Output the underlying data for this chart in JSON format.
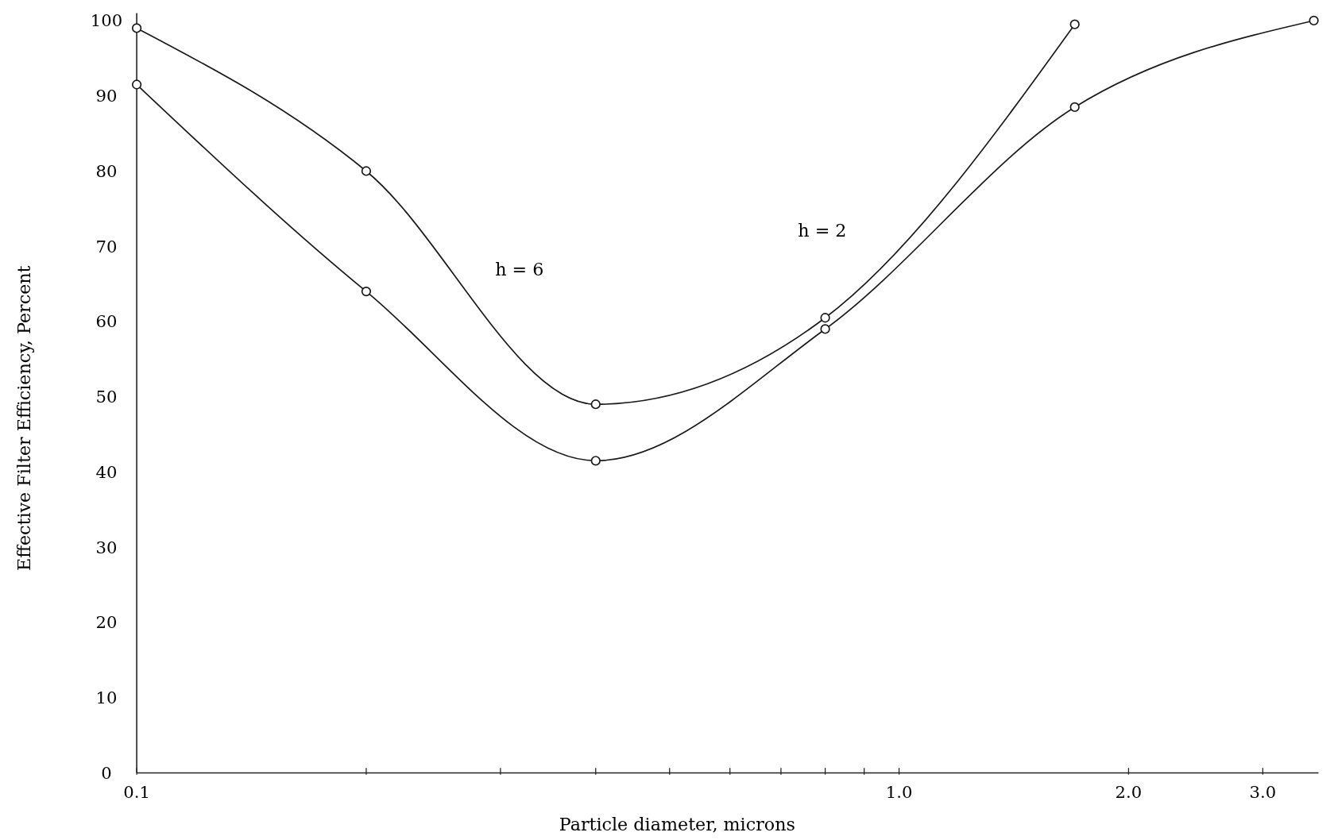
{
  "chart_data": {
    "type": "line",
    "xlabel": "Particle diameter, microns",
    "ylabel": "Effective Filter Efficiency, Percent",
    "log": "x",
    "marker": "circle",
    "line_style": "solid",
    "grid": false,
    "xlim": [
      0.1,
      3.55
    ],
    "ylim": [
      0,
      101
    ],
    "xticks": [
      {
        "value": 0.1,
        "label": "0.1"
      },
      {
        "value": 0.2,
        "label": null
      },
      {
        "value": 0.3,
        "label": null
      },
      {
        "value": 0.4,
        "label": null
      },
      {
        "value": 0.5,
        "label": null
      },
      {
        "value": 0.6,
        "label": null
      },
      {
        "value": 0.7,
        "label": null
      },
      {
        "value": 0.8,
        "label": null
      },
      {
        "value": 0.9,
        "label": null
      },
      {
        "value": 1,
        "label": "1.0"
      },
      {
        "value": 2,
        "label": "2.0"
      },
      {
        "value": 3,
        "label": "3.0"
      }
    ],
    "yticks": [
      0,
      10,
      20,
      30,
      40,
      50,
      60,
      70,
      80,
      90,
      100
    ],
    "series": [
      {
        "color": "#1a1a1a",
        "x": [
          0.1,
          0.2,
          0.4,
          0.8,
          1.7
        ],
        "values": [
          99,
          80,
          49,
          60.5,
          99.5
        ]
      },
      {
        "color": "#1a1a1a",
        "x": [
          0.1,
          0.2,
          0.4,
          0.8,
          1.7,
          3.5
        ],
        "values": [
          91.5,
          64,
          41.5,
          59,
          88.5,
          100
        ]
      }
    ],
    "annotations": [
      "h = 6",
      "h = 2"
    ]
  }
}
